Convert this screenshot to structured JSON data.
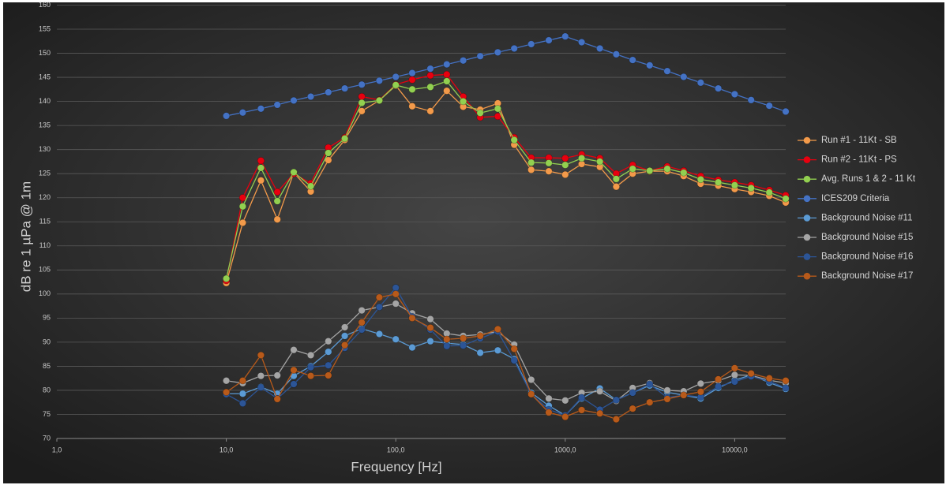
{
  "chart_data": {
    "type": "line",
    "xlabel": "Frequency [Hz]",
    "ylabel": "dB re 1 µPa @ 1m",
    "xscale": "log",
    "grid": true,
    "legend": "right",
    "xlim": [
      1,
      20000
    ],
    "ylim": [
      70,
      160
    ],
    "xticks": [
      {
        "value": 1,
        "label": "1,0"
      },
      {
        "value": 10,
        "label": "10,0"
      },
      {
        "value": 100,
        "label": "100,0"
      },
      {
        "value": 1000,
        "label": "1000,0"
      },
      {
        "value": 10000,
        "label": "10000,0"
      }
    ],
    "yticks": [
      70,
      75,
      80,
      85,
      90,
      95,
      100,
      105,
      110,
      115,
      120,
      125,
      130,
      135,
      140,
      145,
      150,
      155,
      160
    ],
    "x": [
      10,
      12.5,
      16,
      20,
      25,
      31.5,
      40,
      50,
      63,
      80,
      100,
      125,
      160,
      200,
      250,
      315,
      400,
      500,
      630,
      800,
      1000,
      1250,
      1600,
      2000,
      2500,
      3150,
      4000,
      5000,
      6300,
      8000,
      10000,
      12500,
      16000,
      20000
    ],
    "series": [
      {
        "name": "Run #1 - 11Kt - SB",
        "color": "#f39a4a",
        "values": [
          102.3,
          114.8,
          123.6,
          115.5,
          125.2,
          121.3,
          127.8,
          132,
          138,
          140.2,
          143.3,
          139,
          138,
          142.2,
          138.9,
          138.3,
          139.6,
          131,
          125.8,
          125.5,
          124.8,
          127,
          126.4,
          122.3,
          125,
          125.5,
          125.5,
          124.5,
          122.9,
          122.5,
          121.8,
          121.2,
          120.4,
          119
        ]
      },
      {
        "name": "Run #2 - 11Kt - PS",
        "color": "#e8000f",
        "values": [
          102.8,
          120,
          127.7,
          121.2,
          125,
          123,
          130.4,
          132.5,
          141,
          140.3,
          143.5,
          144.5,
          145.4,
          145.6,
          141,
          136.7,
          136.9,
          132.5,
          128.3,
          128.3,
          128.2,
          129,
          128.2,
          125,
          126.8,
          125.6,
          126.5,
          125.6,
          124.5,
          123.7,
          123.2,
          122.6,
          121.6,
          120.5
        ]
      },
      {
        "name": "Avg. Runs 1 & 2 - 11 Kt",
        "color": "#92d050",
        "values": [
          103.2,
          118.2,
          126.2,
          119.3,
          125.3,
          122.4,
          129.3,
          132.3,
          139.7,
          140.2,
          143.4,
          142.5,
          143,
          144.2,
          140,
          137.6,
          138.5,
          132,
          127.3,
          127.2,
          126.8,
          128.2,
          127.5,
          123.9,
          126,
          125.6,
          126,
          125.2,
          123.8,
          123.2,
          122.6,
          122,
          121.1,
          119.8
        ]
      },
      {
        "name": "ICES209 Criteria",
        "color": "#4472c4",
        "values": [
          137,
          137.7,
          138.5,
          139.3,
          140.2,
          141,
          141.9,
          142.7,
          143.5,
          144.3,
          145.1,
          145.9,
          146.8,
          147.7,
          148.5,
          149.4,
          150.2,
          151,
          151.9,
          152.7,
          153.5,
          152.3,
          151,
          149.8,
          148.6,
          147.5,
          146.3,
          145.1,
          143.9,
          142.7,
          141.5,
          140.3,
          139.1,
          137.9
        ]
      },
      {
        "name": "Background Noise #11",
        "color": "#5b9bd5",
        "values": [
          79.3,
          79.3,
          80.7,
          79.3,
          83,
          85,
          88,
          91.3,
          92.8,
          91.7,
          90.6,
          88.9,
          90.2,
          89.8,
          89.5,
          87.8,
          88.3,
          86.5,
          79.5,
          76.8,
          74.8,
          78.3,
          80.4,
          78,
          79.5,
          81,
          79.6,
          79,
          78.3,
          80.5,
          82.1,
          83.2,
          81.6,
          80.3
        ]
      },
      {
        "name": "Background Noise #15",
        "color": "#a5a5a5",
        "values": [
          82,
          81.5,
          83,
          83.1,
          88.4,
          87.3,
          90.2,
          93.1,
          96.6,
          97.3,
          98,
          96,
          94.8,
          91.8,
          91.3,
          91.6,
          92.2,
          89.5,
          82.2,
          78.3,
          77.9,
          79.5,
          79.8,
          77.8,
          80.5,
          81.5,
          80,
          79.8,
          81.4,
          82,
          83.2,
          83.1,
          82.1,
          81.5
        ]
      },
      {
        "name": "Background Noise #16",
        "color": "#2c5597",
        "values": [
          79.2,
          77.3,
          80.6,
          78.3,
          81.3,
          84.8,
          85.2,
          88.8,
          92.6,
          97.3,
          101.3,
          95.3,
          92.6,
          89.2,
          89.3,
          90.8,
          92.2,
          86.2,
          79.2,
          76,
          74.8,
          78.5,
          76,
          78,
          79.5,
          81.3,
          78.5,
          79,
          78.6,
          80.8,
          81.8,
          82.9,
          81.9,
          80.5
        ]
      },
      {
        "name": "Background Noise #17",
        "color": "#b85a1a",
        "values": [
          79.6,
          82,
          87.3,
          78.2,
          84.2,
          83,
          83.1,
          89.4,
          94.1,
          99.3,
          100,
          95,
          93,
          90.6,
          90.8,
          91.3,
          92.7,
          88.6,
          79.2,
          75.4,
          74.5,
          75.9,
          75.2,
          74,
          76.2,
          77.5,
          78.2,
          79,
          79.7,
          82.3,
          84.6,
          83.5,
          82.5,
          82
        ]
      }
    ]
  }
}
